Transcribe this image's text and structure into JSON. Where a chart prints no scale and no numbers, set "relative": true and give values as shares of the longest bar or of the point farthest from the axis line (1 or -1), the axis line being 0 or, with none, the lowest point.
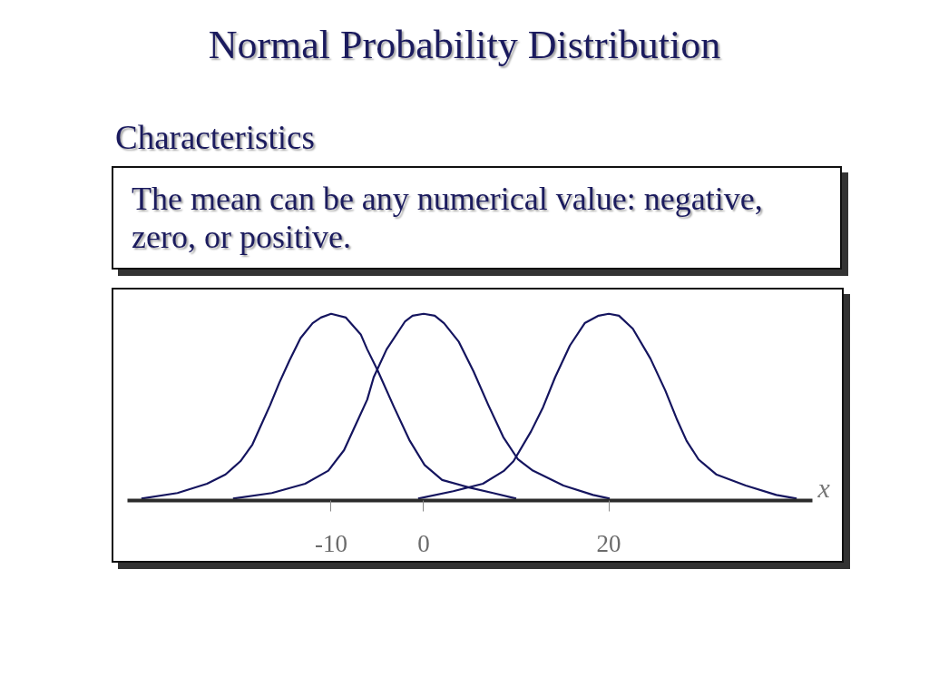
{
  "chart_data": {
    "type": "line",
    "title": "Normal Probability Distribution",
    "subtitle": "Characteristics",
    "annotations": [
      "The mean can be any numerical value: negative, zero, or positive."
    ],
    "xlabel": "x",
    "relative": true,
    "xlim": [
      -32,
      42
    ],
    "xticks": [
      -10,
      0,
      20
    ],
    "series": [
      {
        "color": "#15155f",
        "x": [
          -30.5,
          -26.6,
          -23.4,
          -21.4,
          -19.8,
          -18.5,
          -17.6,
          -16.6,
          -15.6,
          -14.5,
          -13.3,
          -12.0,
          -11.1,
          -10.0,
          -8.4,
          -6.8,
          -6.1,
          -5.0,
          -3.2,
          -1.5,
          0.1,
          2.0,
          4.9,
          7.5,
          10.0
        ],
        "values": [
          0.01,
          0.04,
          0.09,
          0.14,
          0.21,
          0.3,
          0.4,
          0.51,
          0.63,
          0.75,
          0.87,
          0.95,
          0.98,
          1.0,
          0.98,
          0.89,
          0.81,
          0.7,
          0.5,
          0.32,
          0.19,
          0.11,
          0.07,
          0.04,
          0.01
        ]
      },
      {
        "color": "#15155f",
        "x": [
          -20.6,
          -16.4,
          -12.8,
          -10.3,
          -8.6,
          -7.4,
          -6.1,
          -5.4,
          -4.0,
          -2.0,
          -1.2,
          0.0,
          1.2,
          2.2,
          3.8,
          5.4,
          7.0,
          8.6,
          10.2,
          11.8,
          15.1,
          18.3,
          20.1
        ],
        "values": [
          0.01,
          0.04,
          0.09,
          0.16,
          0.27,
          0.4,
          0.54,
          0.66,
          0.81,
          0.96,
          0.99,
          1.0,
          0.99,
          0.95,
          0.85,
          0.69,
          0.51,
          0.34,
          0.22,
          0.16,
          0.08,
          0.03,
          0.01
        ]
      },
      {
        "color": "#15155f",
        "x": [
          -0.6,
          3.2,
          6.4,
          8.7,
          9.7,
          11.6,
          12.9,
          14.2,
          15.8,
          17.4,
          18.9,
          20.0,
          21.1,
          22.6,
          24.5,
          26.1,
          27.4,
          28.4,
          29.7,
          31.6,
          34.8,
          38.1,
          40.3
        ],
        "values": [
          0.01,
          0.05,
          0.09,
          0.16,
          0.21,
          0.37,
          0.5,
          0.66,
          0.83,
          0.95,
          0.99,
          1.0,
          0.99,
          0.92,
          0.76,
          0.59,
          0.43,
          0.32,
          0.22,
          0.14,
          0.08,
          0.03,
          0.01
        ]
      }
    ]
  }
}
